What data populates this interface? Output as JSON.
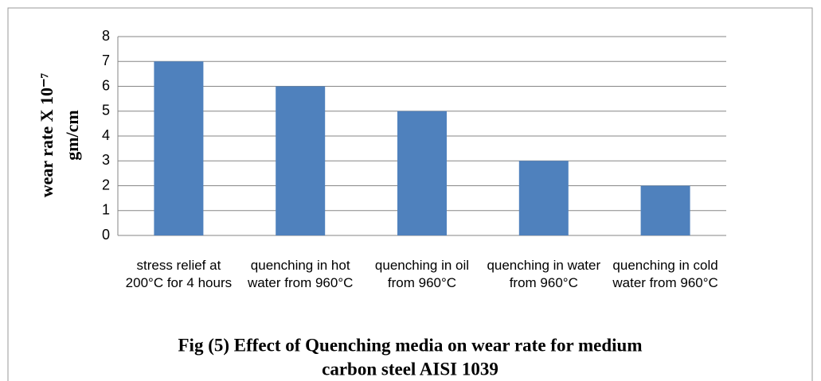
{
  "chart_data": {
    "type": "bar",
    "ylabel": [
      "wear rate  X 10⁻⁷",
      "gm/cm"
    ],
    "caption": [
      "Fig (5) Effect of Quenching media on wear rate for medium",
      "carbon steel AISI 1039"
    ],
    "categories": [
      "stress relief at 200°C for 4 hours",
      "quenching in hot water from 960°C",
      "quenching in oil from 960°C",
      "quenching in water from 960°C",
      "quenching in cold water from 960°C"
    ],
    "values": [
      7,
      6,
      5,
      3,
      2
    ],
    "color": "#4f81bd",
    "ylim": [
      0,
      8
    ],
    "yticks": [
      0,
      1,
      2,
      3,
      4,
      5,
      6,
      7,
      8
    ],
    "grid": true
  }
}
